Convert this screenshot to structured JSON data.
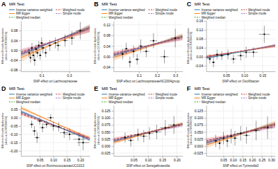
{
  "chart_data": [
    {
      "type": "scatter",
      "title": "MR Test",
      "annotations": [
        "A"
      ],
      "xlabel": "SNP effect on Lachnospiraceae",
      "ylabel": "Effect on Erectile dysfunction (id:ebi-a-GCST006056)",
      "xlim": [
        -0.05,
        0.45
      ],
      "ylim": [
        -0.085,
        0.12
      ],
      "xticks": [
        0.1,
        0.3
      ],
      "yticks": [
        -0.08,
        -0.04,
        {
          "value": 0,
          "label": "0.00"
        },
        0.04,
        0.08
      ],
      "grid": true,
      "legend": "top",
      "series": [
        {
          "name": "Inverse variance weighted",
          "type": "line",
          "line_style": "solid",
          "slope": 0.22,
          "intercept": -0.005,
          "ci": 0.04
        },
        {
          "name": "MR Egger",
          "type": "line",
          "line_style": "solid",
          "slope": 0.24,
          "intercept": -0.018,
          "ci": 0.06
        },
        {
          "name": "Weighted median",
          "type": "line",
          "line_style": "dashed",
          "slope": 0.21,
          "intercept": -0.003
        },
        {
          "name": "Weighted mode",
          "type": "line",
          "line_style": "dashed",
          "slope": 0.19,
          "intercept": 0.002,
          "ci": 0.05
        },
        {
          "name": "Simple mode",
          "type": "line",
          "line_style": "dashed",
          "slope": 0.2,
          "intercept": -0.002,
          "ci": 0.05
        },
        {
          "type": "scatter",
          "marker": "square",
          "color": "black",
          "x": [
            0.01,
            0.02,
            0.03,
            0.04,
            0.05,
            0.06,
            0.07,
            0.08,
            0.09,
            0.1,
            0.11,
            0.13,
            0.16,
            0.2,
            0.22,
            0.27,
            0.32,
            0.38
          ],
          "values": [
            -0.01,
            -0.03,
            0.01,
            -0.02,
            -0.04,
            0.005,
            -0.01,
            0.02,
            -0.02,
            0.03,
            0.01,
            -0.01,
            0.02,
            0.03,
            0.02,
            0.04,
            0.05,
            0.08
          ],
          "xerr": [
            0.008,
            0.008,
            0.008,
            0.01,
            0.01,
            0.01,
            0.01,
            0.012,
            0.01,
            0.012,
            0.015,
            0.012,
            0.015,
            0.018,
            0.018,
            0.02,
            0.022,
            0.028
          ],
          "yerr": [
            0.018,
            0.02,
            0.02,
            0.02,
            0.022,
            0.018,
            0.018,
            0.018,
            0.018,
            0.022,
            0.022,
            0.018,
            0.022,
            0.022,
            0.022,
            0.025,
            0.028,
            0.035
          ]
        }
      ]
    },
    {
      "type": "scatter",
      "title": "MR Test",
      "annotations": [
        "B"
      ],
      "xlabel": "SNP effect on LachnospiraceaeNC2004group",
      "ylabel": "Effect on Erectile dysfunction (id:ebi-a-GCST006056)",
      "xlim": [
        -0.04,
        0.34
      ],
      "ylim": [
        -0.055,
        0.135
      ],
      "xticks": [
        0.1,
        0.2,
        0.3
      ],
      "yticks": [
        -0.04,
        {
          "value": 0,
          "label": "0.00"
        },
        0.04,
        0.08,
        0.12
      ],
      "grid": true,
      "legend": "top",
      "series": [
        {
          "name": "Inverse variance weighted",
          "type": "line",
          "line_style": "solid",
          "slope": 0.19,
          "intercept": 0.012,
          "ci": 0.04
        },
        {
          "name": "MR Egger",
          "type": "line",
          "line_style": "solid",
          "slope": 0.21,
          "intercept": 0.005,
          "ci": 0.06
        },
        {
          "name": "Weighted median",
          "type": "line",
          "line_style": "dashed",
          "slope": 0.18,
          "intercept": 0.015
        },
        {
          "name": "Weighted mode",
          "type": "line",
          "line_style": "dashed",
          "slope": 0.16,
          "intercept": 0.018,
          "ci": 0.05
        },
        {
          "name": "Simple mode",
          "type": "line",
          "line_style": "dashed",
          "slope": 0.17,
          "intercept": 0.014,
          "ci": 0.05
        },
        {
          "type": "scatter",
          "marker": "square",
          "color": "black",
          "x": [
            0.01,
            0.03,
            0.05,
            0.07,
            0.09,
            0.11,
            0.14,
            0.18,
            0.24,
            0.3
          ],
          "values": [
            0.01,
            0.03,
            -0.02,
            0.02,
            -0.01,
            0.04,
            0.02,
            0.06,
            0.0,
            0.07
          ],
          "xerr": [
            0.008,
            0.01,
            0.01,
            0.012,
            0.012,
            0.015,
            0.018,
            0.02,
            0.022,
            0.025
          ],
          "yerr": [
            0.02,
            0.022,
            0.02,
            0.022,
            0.02,
            0.025,
            0.022,
            0.028,
            0.025,
            0.035
          ]
        }
      ]
    },
    {
      "type": "scatter",
      "title": "MR Test",
      "annotations": [
        "C"
      ],
      "xlabel": "SNP effect on Oscillibacter",
      "ylabel": "Effect on Erectile dysfunction (id:ebi-a-GCST006056)",
      "xlim": [
        -0.005,
        0.185
      ],
      "ylim": [
        -0.065,
        0.16
      ],
      "xticks": [
        0.05,
        {
          "value": 0.1,
          "label": "0.10"
        },
        0.15
      ],
      "yticks": [
        -0.04,
        {
          "value": 0,
          "label": "0.00"
        },
        0.04,
        0.08,
        0.12,
        0.16
      ],
      "grid": true,
      "legend": "top",
      "series": [
        {
          "name": "Inverse variance weighted",
          "type": "line",
          "line_style": "solid",
          "slope": 0.3,
          "intercept": -0.005,
          "ci": 0.05
        },
        {
          "name": "MR Egger",
          "type": "line",
          "line_style": "solid",
          "slope": 0.25,
          "intercept": 0.002,
          "ci": 0.07
        },
        {
          "name": "Weighted median",
          "type": "line",
          "line_style": "dashed",
          "slope": 0.28,
          "intercept": -0.002
        },
        {
          "name": "Weighted mode",
          "type": "line",
          "line_style": "dashed",
          "slope": 0.26,
          "intercept": 0.001,
          "ci": 0.06
        },
        {
          "name": "Simple mode",
          "type": "line",
          "line_style": "dashed",
          "slope": 0.27,
          "intercept": 0.0,
          "ci": 0.06
        },
        {
          "type": "scatter",
          "marker": "square",
          "color": "black",
          "x": [
            0.005,
            0.015,
            0.025,
            0.038,
            0.055,
            0.07,
            0.09,
            0.105,
            0.125,
            0.155
          ],
          "values": [
            -0.01,
            -0.025,
            0.01,
            0.005,
            0.01,
            -0.01,
            0.005,
            0.02,
            0.02,
            0.1
          ],
          "xerr": [
            0.004,
            0.005,
            0.005,
            0.006,
            0.007,
            0.008,
            0.009,
            0.01,
            0.012,
            0.015
          ],
          "yerr": [
            0.02,
            0.022,
            0.022,
            0.02,
            0.022,
            0.02,
            0.022,
            0.025,
            0.022,
            0.038
          ]
        }
      ]
    },
    {
      "type": "scatter",
      "title": "MR Test",
      "annotations": [
        "D"
      ],
      "xlabel": "SNP effect on RuminococcaceaeUCG013",
      "ylabel": "Effect on Erectile dysfunction (id:ebi-a-GCST006056)",
      "xlim": [
        -0.02,
        0.235
      ],
      "ylim": [
        -0.23,
        0.075
      ],
      "xticks": [
        0.05,
        {
          "value": 0.1,
          "label": "0.10"
        },
        0.15,
        {
          "value": 0.2,
          "label": "0.20"
        }
      ],
      "yticks": [
        {
          "value": -0.2,
          "label": "-0.20"
        },
        -0.15,
        {
          "value": -0.1,
          "label": "-0.10"
        },
        -0.05,
        {
          "value": 0,
          "label": "0.00"
        },
        0.05
      ],
      "grid": true,
      "legend": "top",
      "series": [
        {
          "name": "Inverse variance weighted",
          "type": "line",
          "line_style": "solid",
          "slope": -0.68,
          "intercept": 0.025,
          "ci": 0.06
        },
        {
          "name": "MR Egger",
          "type": "line",
          "line_style": "solid",
          "slope": -0.72,
          "intercept": 0.045,
          "ci": 0.09
        },
        {
          "name": "Weighted median",
          "type": "line",
          "line_style": "dashed",
          "slope": -0.62,
          "intercept": 0.018
        },
        {
          "name": "Weighted mode",
          "type": "line",
          "line_style": "dashed",
          "slope": -0.58,
          "intercept": 0.012,
          "ci": 0.07
        },
        {
          "name": "Simple mode",
          "type": "line",
          "line_style": "dashed",
          "slope": -0.64,
          "intercept": 0.022,
          "ci": 0.07
        },
        {
          "type": "scatter",
          "marker": "square",
          "color": "black",
          "x": [
            0.02,
            0.03,
            0.04,
            0.05,
            0.06,
            0.075,
            0.09,
            0.1,
            0.12,
            0.14,
            0.16,
            0.195,
            0.21
          ],
          "values": [
            -0.04,
            -0.08,
            -0.12,
            -0.02,
            -0.06,
            -0.04,
            0.0,
            -0.05,
            -0.055,
            -0.09,
            -0.1,
            -0.13,
            -0.15
          ],
          "xerr": [
            0.008,
            0.009,
            0.01,
            0.01,
            0.01,
            0.012,
            0.012,
            0.013,
            0.013,
            0.016,
            0.018,
            0.022,
            0.022
          ],
          "yerr": [
            0.022,
            0.028,
            0.032,
            0.022,
            0.028,
            0.022,
            0.022,
            0.028,
            0.028,
            0.032,
            0.036,
            0.042,
            0.046
          ]
        }
      ]
    },
    {
      "type": "scatter",
      "title": "MR Test",
      "annotations": [
        "E"
      ],
      "xlabel": "SNP effect on Senegalimassilia",
      "ylabel": "Effect on Erectile dysfunction (id:ebi-a-GCST006056)",
      "xlim": [
        -0.02,
        0.22
      ],
      "ylim": [
        -0.035,
        0.145
      ],
      "xticks": [
        0.05,
        {
          "value": 0.1,
          "label": "0.10"
        },
        0.15,
        {
          "value": 0.2,
          "label": "0.20"
        }
      ],
      "yticks": [
        -0.025,
        {
          "value": 0,
          "label": "0.000"
        },
        0.025,
        {
          "value": 0.05,
          "label": "0.050"
        },
        0.075,
        {
          "value": 0.1,
          "label": "0.100"
        },
        0.125
      ],
      "grid": true,
      "legend": "top",
      "series": [
        {
          "name": "Inverse variance weighted",
          "type": "line",
          "line_style": "solid",
          "slope": 0.26,
          "intercept": 0.022,
          "ci": 0.04
        },
        {
          "name": "MR Egger",
          "type": "line",
          "line_style": "solid",
          "slope": 0.28,
          "intercept": 0.018,
          "ci": 0.06
        },
        {
          "name": "Weighted median",
          "type": "line",
          "line_style": "dashed",
          "slope": 0.24,
          "intercept": 0.025
        },
        {
          "name": "Weighted mode",
          "type": "line",
          "line_style": "dashed",
          "slope": 0.22,
          "intercept": 0.028,
          "ci": 0.05
        },
        {
          "name": "Simple mode",
          "type": "line",
          "line_style": "dashed",
          "slope": 0.23,
          "intercept": 0.024,
          "ci": 0.05
        },
        {
          "type": "scatter",
          "marker": "square",
          "color": "black",
          "x": [
            0.02,
            0.04,
            0.065,
            0.085,
            0.105,
            0.13,
            0.16,
            0.19
          ],
          "values": [
            0.03,
            0.02,
            0.04,
            0.035,
            0.045,
            0.05,
            0.065,
            0.075
          ],
          "xerr": [
            0.009,
            0.01,
            0.012,
            0.013,
            0.014,
            0.016,
            0.018,
            0.02
          ],
          "yerr": [
            0.018,
            0.022,
            0.022,
            0.022,
            0.022,
            0.026,
            0.028,
            0.032
          ]
        }
      ]
    },
    {
      "type": "scatter",
      "title": "MR Test",
      "annotations": [
        "F"
      ],
      "xlabel": "SNP effect on Tyzzerella3",
      "ylabel": "Effect on Erectile dysfunction (id:ebi-a-GCST006056)",
      "xlim": [
        -0.04,
        0.32
      ],
      "ylim": [
        -0.035,
        0.145
      ],
      "xticks": [
        0.05,
        {
          "value": 0.1,
          "label": "0.10"
        },
        0.15,
        {
          "value": 0.2,
          "label": "0.20"
        },
        0.25,
        {
          "value": 0.3,
          "label": "0.30"
        }
      ],
      "yticks": [
        -0.025,
        {
          "value": 0,
          "label": "0.000"
        },
        0.025,
        {
          "value": 0.05,
          "label": "0.050"
        },
        0.075,
        {
          "value": 0.1,
          "label": "0.100"
        },
        0.125
      ],
      "grid": true,
      "legend": "top",
      "series": [
        {
          "name": "Inverse variance weighted",
          "type": "line",
          "line_style": "solid",
          "slope": 0.19,
          "intercept": 0.018,
          "ci": 0.04
        },
        {
          "name": "MR Egger",
          "type": "line",
          "line_style": "solid",
          "slope": 0.21,
          "intercept": 0.012,
          "ci": 0.06
        },
        {
          "name": "Weighted median",
          "type": "line",
          "line_style": "dashed",
          "slope": 0.175,
          "intercept": 0.022
        },
        {
          "name": "Weighted mode",
          "type": "line",
          "line_style": "dashed",
          "slope": 0.155,
          "intercept": 0.025,
          "ci": 0.05
        },
        {
          "name": "Simple mode",
          "type": "line",
          "line_style": "dashed",
          "slope": 0.165,
          "intercept": 0.02,
          "ci": 0.05
        },
        {
          "type": "scatter",
          "marker": "square",
          "color": "black",
          "x": [
            0.01,
            0.03,
            0.05,
            0.07,
            0.09,
            0.11,
            0.14,
            0.17,
            0.22,
            0.28
          ],
          "values": [
            0.018,
            0.01,
            0.028,
            0.018,
            0.035,
            0.028,
            0.045,
            0.038,
            0.055,
            0.065
          ],
          "xerr": [
            0.009,
            0.01,
            0.01,
            0.01,
            0.013,
            0.013,
            0.018,
            0.018,
            0.022,
            0.027
          ],
          "yerr": [
            0.022,
            0.022,
            0.022,
            0.022,
            0.026,
            0.026,
            0.026,
            0.03,
            0.035,
            0.04
          ]
        }
      ]
    }
  ]
}
